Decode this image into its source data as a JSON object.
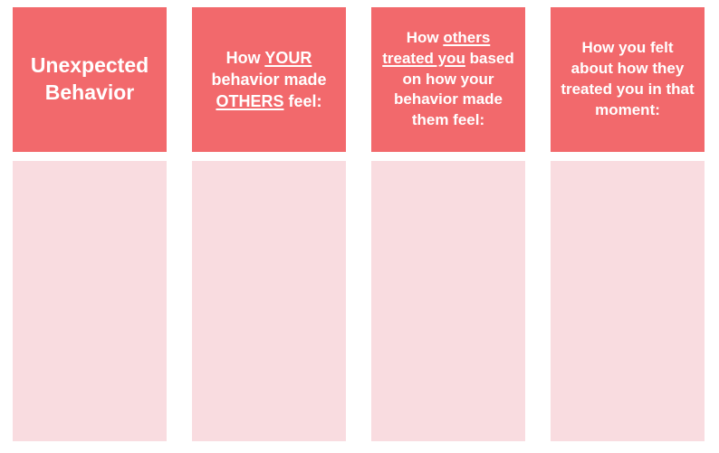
{
  "colors": {
    "header_bg": "#F2696C",
    "cell_bg": "#F9DCE0",
    "page_bg": "#FFFFFF",
    "header_text": "#FFFFFF"
  },
  "columns": [
    {
      "header_segments": [
        {
          "text": "Unexpected Behavior",
          "underline": false
        }
      ],
      "cell_value": ""
    },
    {
      "header_segments": [
        {
          "text": "How ",
          "underline": false
        },
        {
          "text": "YOUR",
          "underline": true
        },
        {
          "text": " behavior made ",
          "underline": false
        },
        {
          "text": "OTHERS",
          "underline": true
        },
        {
          "text": " feel:",
          "underline": false
        }
      ],
      "cell_value": ""
    },
    {
      "header_segments": [
        {
          "text": "How ",
          "underline": false
        },
        {
          "text": "others treated you",
          "underline": true
        },
        {
          "text": " based on how your behavior made them feel:",
          "underline": false
        }
      ],
      "cell_value": ""
    },
    {
      "header_segments": [
        {
          "text": "How you felt about how they treated you in that moment:",
          "underline": false
        }
      ],
      "cell_value": ""
    }
  ]
}
